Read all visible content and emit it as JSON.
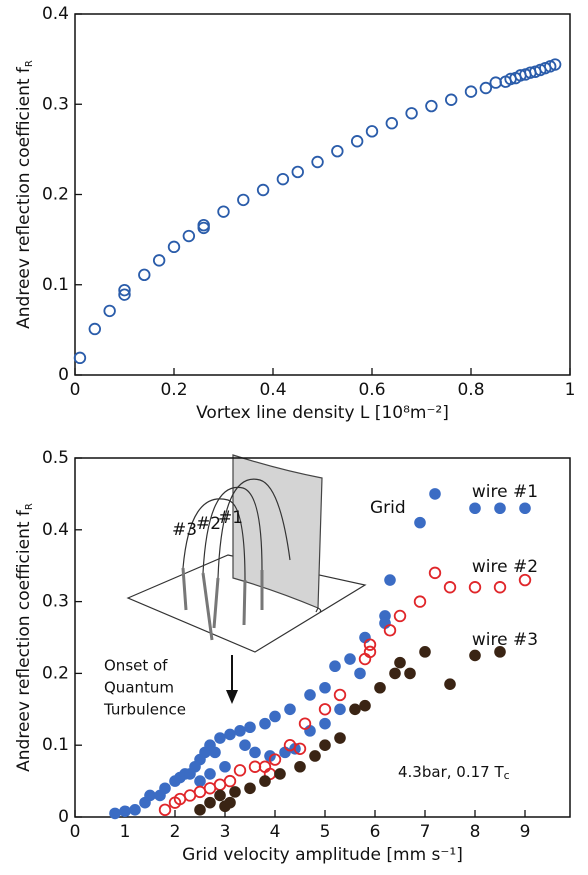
{
  "chart_data": [
    {
      "type": "scatter",
      "xlabel": "Vortex line density L [10⁸m⁻²]",
      "ylabel": "Andreev reflection coefficient f",
      "ylabel_sub": "R",
      "xlim": [
        0,
        1
      ],
      "xticks": [
        0,
        0.2,
        0.4,
        0.6,
        0.8,
        1
      ],
      "ylim": [
        0,
        0.4
      ],
      "yticks": [
        0,
        0.1,
        0.2,
        0.3,
        0.4
      ],
      "series": [
        {
          "color": "#2a5caa",
          "marker": "open",
          "x": [
            0.01,
            0.04,
            0.07,
            0.1,
            0.1,
            0.14,
            0.17,
            0.2,
            0.23,
            0.26,
            0.26,
            0.3,
            0.34,
            0.38,
            0.42,
            0.45,
            0.49,
            0.53,
            0.57,
            0.6,
            0.64,
            0.68,
            0.72,
            0.76,
            0.8,
            0.83,
            0.85,
            0.87,
            0.88,
            0.89,
            0.9,
            0.91,
            0.92,
            0.93,
            0.94,
            0.95,
            0.96,
            0.97
          ],
          "values": [
            0.019,
            0.051,
            0.071,
            0.089,
            0.094,
            0.111,
            0.127,
            0.142,
            0.154,
            0.163,
            0.166,
            0.181,
            0.194,
            0.205,
            0.217,
            0.225,
            0.236,
            0.248,
            0.259,
            0.27,
            0.279,
            0.29,
            0.298,
            0.305,
            0.314,
            0.318,
            0.324,
            0.325,
            0.328,
            0.329,
            0.332,
            0.333,
            0.335,
            0.336,
            0.338,
            0.34,
            0.342,
            0.344
          ]
        }
      ]
    },
    {
      "type": "scatter",
      "xlabel": "Grid velocity amplitude [mm s⁻¹]",
      "ylabel": "Andreev reflection coefficient f",
      "ylabel_sub": "R",
      "xlim": [
        0,
        9.9
      ],
      "xticks": [
        0,
        1,
        2,
        3,
        4,
        5,
        6,
        7,
        8,
        9
      ],
      "ylim": [
        0,
        0.5
      ],
      "yticks": [
        0,
        0.1,
        0.2,
        0.3,
        0.4,
        0.5
      ],
      "condition": "4.3bar, 0.17 T",
      "condition_sub": "c",
      "inset_labels": [
        "Grid",
        "#3",
        "#2",
        "#1"
      ],
      "onset_label": [
        "Onset of",
        "Quantum",
        "Turbulence"
      ],
      "series": [
        {
          "name": "wire #1",
          "color": "#3b6cc4",
          "marker": "filled",
          "x": [
            0.8,
            1.0,
            1.2,
            1.4,
            1.5,
            1.7,
            1.8,
            2.0,
            2.1,
            2.2,
            2.3,
            2.4,
            2.5,
            2.6,
            2.7,
            2.8,
            2.9,
            3.1,
            3.3,
            3.5,
            3.8,
            4.0,
            4.3,
            4.7,
            5.0,
            5.2,
            5.5,
            5.8,
            6.2,
            6.3,
            6.9,
            7.2,
            8.0,
            8.5,
            9.0,
            2.5,
            2.7,
            3.0,
            3.4,
            3.6,
            3.9,
            4.2,
            4.4,
            4.7,
            5.0,
            5.3,
            5.7,
            6.2
          ],
          "values": [
            0.005,
            0.008,
            0.01,
            0.02,
            0.03,
            0.03,
            0.04,
            0.05,
            0.055,
            0.06,
            0.06,
            0.07,
            0.08,
            0.09,
            0.1,
            0.09,
            0.11,
            0.115,
            0.12,
            0.125,
            0.13,
            0.14,
            0.15,
            0.17,
            0.18,
            0.21,
            0.22,
            0.25,
            0.28,
            0.33,
            0.41,
            0.45,
            0.43,
            0.43,
            0.43,
            0.05,
            0.06,
            0.07,
            0.1,
            0.09,
            0.085,
            0.09,
            0.095,
            0.12,
            0.13,
            0.15,
            0.2,
            0.27
          ]
        },
        {
          "name": "wire #2",
          "color": "#e0262a",
          "marker": "open",
          "x": [
            1.8,
            2.0,
            2.1,
            2.3,
            2.5,
            2.7,
            2.9,
            3.1,
            3.3,
            3.6,
            3.8,
            4.0,
            4.3,
            4.6,
            5.0,
            5.3,
            5.8,
            5.9,
            6.3,
            6.5,
            6.9,
            7.2,
            7.5,
            8.0,
            8.5,
            9.0,
            5.9,
            4.5,
            3.9
          ],
          "values": [
            0.01,
            0.02,
            0.025,
            0.03,
            0.035,
            0.04,
            0.045,
            0.05,
            0.065,
            0.07,
            0.07,
            0.08,
            0.1,
            0.13,
            0.15,
            0.17,
            0.22,
            0.24,
            0.26,
            0.28,
            0.3,
            0.34,
            0.32,
            0.32,
            0.32,
            0.33,
            0.23,
            0.095,
            0.06
          ]
        },
        {
          "name": "wire #3",
          "color": "#3a2414",
          "marker": "filled",
          "x": [
            2.5,
            2.7,
            2.9,
            3.0,
            3.1,
            3.2,
            3.5,
            3.8,
            4.1,
            4.5,
            4.8,
            5.0,
            5.3,
            5.6,
            5.8,
            6.1,
            6.4,
            6.5,
            6.7,
            7.0,
            7.5,
            8.0,
            8.5
          ],
          "values": [
            0.01,
            0.02,
            0.03,
            0.015,
            0.02,
            0.035,
            0.04,
            0.05,
            0.06,
            0.07,
            0.085,
            0.1,
            0.11,
            0.15,
            0.155,
            0.18,
            0.2,
            0.215,
            0.2,
            0.23,
            0.185,
            0.225,
            0.23
          ]
        }
      ]
    }
  ]
}
